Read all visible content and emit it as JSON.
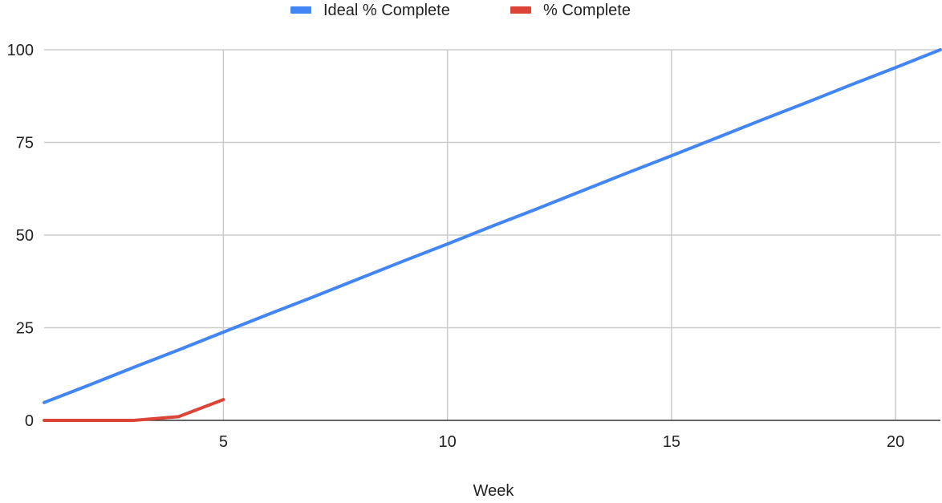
{
  "chart_data": {
    "type": "line",
    "title": "",
    "xlabel": "Week",
    "ylabel": "",
    "xlim": [
      1,
      21
    ],
    "ylim": [
      0,
      100
    ],
    "x_ticks": [
      5,
      10,
      15,
      20
    ],
    "y_ticks": [
      0,
      25,
      50,
      75,
      100
    ],
    "grid": true,
    "legend_position": "top-center",
    "series": [
      {
        "name": "Ideal % Complete",
        "color": "#4285f4",
        "x": [
          1,
          2,
          3,
          4,
          5,
          6,
          7,
          8,
          9,
          10,
          11,
          12,
          13,
          14,
          15,
          16,
          17,
          18,
          19,
          20,
          21
        ],
        "values": [
          4.8,
          9.5,
          14.3,
          19.0,
          23.8,
          28.6,
          33.3,
          38.1,
          42.9,
          47.6,
          52.4,
          57.1,
          61.9,
          66.7,
          71.4,
          76.2,
          81.0,
          85.7,
          90.5,
          95.2,
          100
        ]
      },
      {
        "name": "% Complete",
        "color": "#db4437",
        "x": [
          1,
          2,
          3,
          4,
          5
        ],
        "values": [
          0,
          0,
          0,
          1,
          5.6
        ]
      }
    ]
  }
}
